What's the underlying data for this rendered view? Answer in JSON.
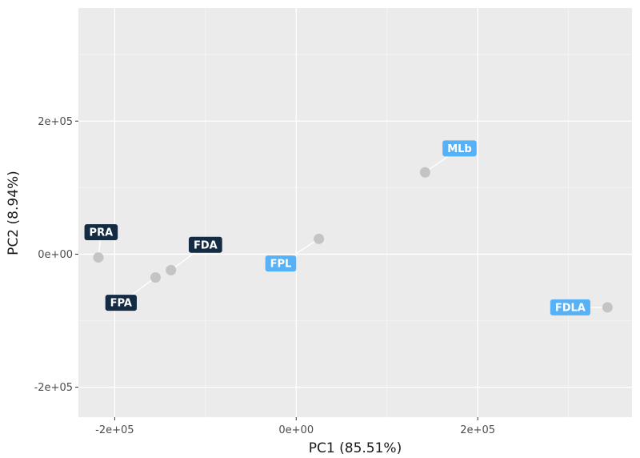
{
  "chart_data": {
    "type": "scatter",
    "xlabel": "PC1 (85.51%)",
    "ylabel": "PC2 (8.94%)",
    "xlim": [
      -240000,
      370000
    ],
    "ylim": [
      -245000,
      370000
    ],
    "x_ticks": [
      -200000,
      0,
      200000
    ],
    "x_tick_labels": [
      "-2e+05",
      "0e+00",
      "2e+05"
    ],
    "y_ticks": [
      -200000,
      0,
      200000
    ],
    "y_tick_labels": [
      "-2e+05",
      "0e+00",
      "2e+05"
    ],
    "grid": true,
    "colors": {
      "panel_bg": "#ebebeb",
      "grid_major": "#ffffff",
      "grid_minor": "#f5f5f5",
      "point": "#c4c4c4",
      "dark_label": "#132b43",
      "light_label": "#56b1f7"
    },
    "points": [
      {
        "x": -218000,
        "y": -5000
      },
      {
        "x": -155000,
        "y": -35000
      },
      {
        "x": -138000,
        "y": -24000
      },
      {
        "x": 25000,
        "y": 23000
      },
      {
        "x": 142000,
        "y": 123000
      },
      {
        "x": 343000,
        "y": -80000
      }
    ],
    "labels": [
      {
        "text": "PRA",
        "shade": "dark",
        "point": 0,
        "lx": -215000,
        "ly": 33000
      },
      {
        "text": "FPA",
        "shade": "dark",
        "point": 1,
        "lx": -193000,
        "ly": -73000
      },
      {
        "text": "FDA",
        "shade": "dark",
        "point": 2,
        "lx": -100000,
        "ly": 14000
      },
      {
        "text": "FPL",
        "shade": "light",
        "point": 3,
        "lx": -17000,
        "ly": -14000
      },
      {
        "text": "MLb",
        "shade": "light",
        "point": 4,
        "lx": 180000,
        "ly": 159000
      },
      {
        "text": "FDLA",
        "shade": "light",
        "point": 5,
        "lx": 302000,
        "ly": -80000
      }
    ]
  }
}
